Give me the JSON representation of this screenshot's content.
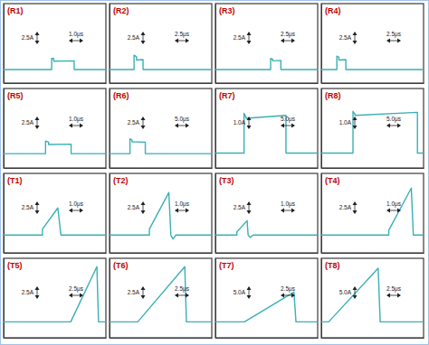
{
  "chart_data": [
    {
      "type": "line",
      "title": "(R1)",
      "annotations": [
        "2.5A",
        "1.0μs"
      ],
      "x": [
        0,
        4.7,
        4.7,
        4.9,
        4.9,
        6.9,
        6.9,
        10
      ],
      "values": [
        0,
        0,
        2.8,
        2.8,
        2.1,
        2.2,
        0,
        0
      ],
      "color": "#3ab0b4",
      "xlim": [
        0,
        10
      ],
      "ylim": [
        -3.4,
        16.6
      ],
      "tick_labels": false
    },
    {
      "type": "line",
      "title": "(R2)",
      "annotations": [
        "2.5A",
        "2.5μs"
      ],
      "x": [
        0,
        6,
        6,
        6.6,
        6.6,
        8.2,
        8.2,
        25
      ],
      "values": [
        0,
        0,
        3.6,
        3.2,
        2.4,
        2.5,
        0,
        0
      ],
      "color": "#3ab0b4",
      "xlim": [
        0,
        25
      ],
      "ylim": [
        -3.4,
        16.6
      ],
      "tick_labels": false
    },
    {
      "type": "line",
      "title": "(R3)",
      "annotations": [
        "2.5A",
        "2.5μs"
      ],
      "x": [
        0,
        13.5,
        13.5,
        14,
        14,
        16,
        16,
        25
      ],
      "values": [
        0,
        0,
        2.8,
        2.6,
        2.2,
        2.3,
        0,
        0
      ],
      "color": "#3ab0b4",
      "xlim": [
        0,
        25
      ],
      "ylim": [
        -3.4,
        16.6
      ],
      "tick_labels": false
    },
    {
      "type": "line",
      "title": "(R4)",
      "annotations": [
        "2.5A",
        "2.5μs"
      ],
      "x": [
        0,
        3.8,
        3.8,
        4.3,
        4.3,
        6,
        6,
        25
      ],
      "values": [
        0,
        0,
        3.4,
        3.1,
        2.4,
        2.5,
        0,
        0
      ],
      "color": "#3ab0b4",
      "xlim": [
        0,
        25
      ],
      "ylim": [
        -3.4,
        16.6
      ],
      "tick_labels": false
    },
    {
      "type": "line",
      "title": "(R5)",
      "annotations": [
        "2.5A",
        "1.0μs"
      ],
      "x": [
        0,
        4.1,
        4.1,
        4.4,
        4.4,
        6.6,
        6.6,
        10
      ],
      "values": [
        0,
        0,
        3.2,
        2.9,
        2.3,
        2.4,
        0,
        0
      ],
      "color": "#3ab0b4",
      "xlim": [
        0,
        10
      ],
      "ylim": [
        -3.6,
        16.4
      ],
      "tick_labels": false
    },
    {
      "type": "line",
      "title": "(R6)",
      "annotations": [
        "2.5A",
        "5.0μs"
      ],
      "x": [
        0,
        10,
        10,
        11,
        11,
        17.5,
        17.5,
        50
      ],
      "values": [
        0,
        0,
        3.8,
        3.4,
        3.0,
        2.9,
        0,
        0
      ],
      "color": "#3ab0b4",
      "xlim": [
        0,
        50
      ],
      "ylim": [
        -3.6,
        16.4
      ],
      "tick_labels": false
    },
    {
      "type": "line",
      "title": "(R7)",
      "annotations": [
        "1.0A",
        "5.0μs"
      ],
      "x": [
        0,
        14,
        14,
        15,
        15,
        34.5,
        34.5,
        50
      ],
      "values": [
        0,
        0,
        4.0,
        3.6,
        3.5,
        3.8,
        0,
        0
      ],
      "color": "#3ab0b4",
      "xlim": [
        0,
        50
      ],
      "ylim": [
        -1.5,
        6.5
      ],
      "tick_labels": false
    },
    {
      "type": "line",
      "title": "(R8)",
      "annotations": [
        "1.0A",
        "5.0μs"
      ],
      "x": [
        0,
        15.5,
        15.5,
        16.5,
        16.5,
        47,
        47,
        50
      ],
      "values": [
        0,
        0,
        4.2,
        3.9,
        3.8,
        4.1,
        0,
        0
      ],
      "color": "#3ab0b4",
      "xlim": [
        0,
        50
      ],
      "ylim": [
        -1.5,
        6.5
      ],
      "tick_labels": false
    },
    {
      "type": "line",
      "title": "(T1)",
      "annotations": [
        "2.5A",
        "1.0μs"
      ],
      "x": [
        0,
        3.8,
        3.8,
        5.3,
        5.6,
        10
      ],
      "values": [
        0,
        0,
        1.5,
        6.8,
        0,
        0
      ],
      "color": "#3ab0b4",
      "xlim": [
        0,
        10
      ],
      "ylim": [
        -4.5,
        15.5
      ],
      "tick_labels": false
    },
    {
      "type": "line",
      "title": "(T2)",
      "annotations": [
        "2.5A",
        "1.0μs"
      ],
      "x": [
        0,
        3.9,
        3.9,
        5.8,
        6.0,
        6.2,
        6.5,
        10
      ],
      "values": [
        0,
        0,
        1.5,
        10.7,
        0,
        -1.0,
        0,
        0
      ],
      "color": "#3ab0b4",
      "xlim": [
        0,
        10
      ],
      "ylim": [
        -4.5,
        15.5
      ],
      "tick_labels": false
    },
    {
      "type": "line",
      "title": "(T3)",
      "annotations": [
        "2.5A",
        "1.0μs"
      ],
      "x": [
        0,
        2.1,
        2.1,
        3.1,
        3.2,
        3.4,
        3.7,
        10
      ],
      "values": [
        0,
        0,
        0.8,
        3.6,
        0,
        -0.6,
        0,
        0
      ],
      "color": "#3ab0b4",
      "xlim": [
        0,
        10
      ],
      "ylim": [
        -4.5,
        15.5
      ],
      "tick_labels": false
    },
    {
      "type": "line",
      "title": "(T4)",
      "annotations": [
        "2.5A",
        "1.0μs"
      ],
      "x": [
        0,
        6.6,
        6.6,
        8.8,
        9.0,
        10
      ],
      "values": [
        0,
        0,
        1.2,
        11.8,
        0,
        0
      ],
      "color": "#3ab0b4",
      "xlim": [
        0,
        10
      ],
      "ylim": [
        -4.5,
        15.5
      ],
      "tick_labels": false
    },
    {
      "type": "line",
      "title": "(T5)",
      "annotations": [
        "2.5A",
        "2.5μs"
      ],
      "x": [
        0,
        16.4,
        22.8,
        23.2,
        25
      ],
      "values": [
        0,
        0,
        13.9,
        0,
        0
      ],
      "color": "#3ab0b4",
      "xlim": [
        0,
        25
      ],
      "ylim": [
        -4,
        16
      ],
      "tick_labels": false
    },
    {
      "type": "line",
      "title": "(T6)",
      "annotations": [
        "2.5A",
        "2.5μs"
      ],
      "x": [
        0,
        6.9,
        18.4,
        18.8,
        25
      ],
      "values": [
        0,
        0,
        13.9,
        0,
        0
      ],
      "color": "#3ab0b4",
      "xlim": [
        0,
        25
      ],
      "ylim": [
        -4,
        16
      ],
      "tick_labels": false
    },
    {
      "type": "line",
      "title": "(T7)",
      "annotations": [
        "5.0A",
        "2.5μs"
      ],
      "x": [
        0,
        7.1,
        19.2,
        19.7,
        25
      ],
      "values": [
        0,
        0,
        15,
        0,
        0
      ],
      "color": "#3ab0b4",
      "xlim": [
        0,
        25
      ],
      "ylim": [
        -8,
        32
      ],
      "tick_labels": false
    },
    {
      "type": "line",
      "title": "(T8)",
      "annotations": [
        "5.0A",
        "2.5μs"
      ],
      "x": [
        0,
        1.8,
        13.9,
        14.4,
        25
      ],
      "values": [
        0,
        0,
        27,
        0,
        0
      ],
      "color": "#3ab0b4",
      "xlim": [
        0,
        25
      ],
      "ylim": [
        -8,
        32
      ],
      "tick_labels": false
    }
  ]
}
